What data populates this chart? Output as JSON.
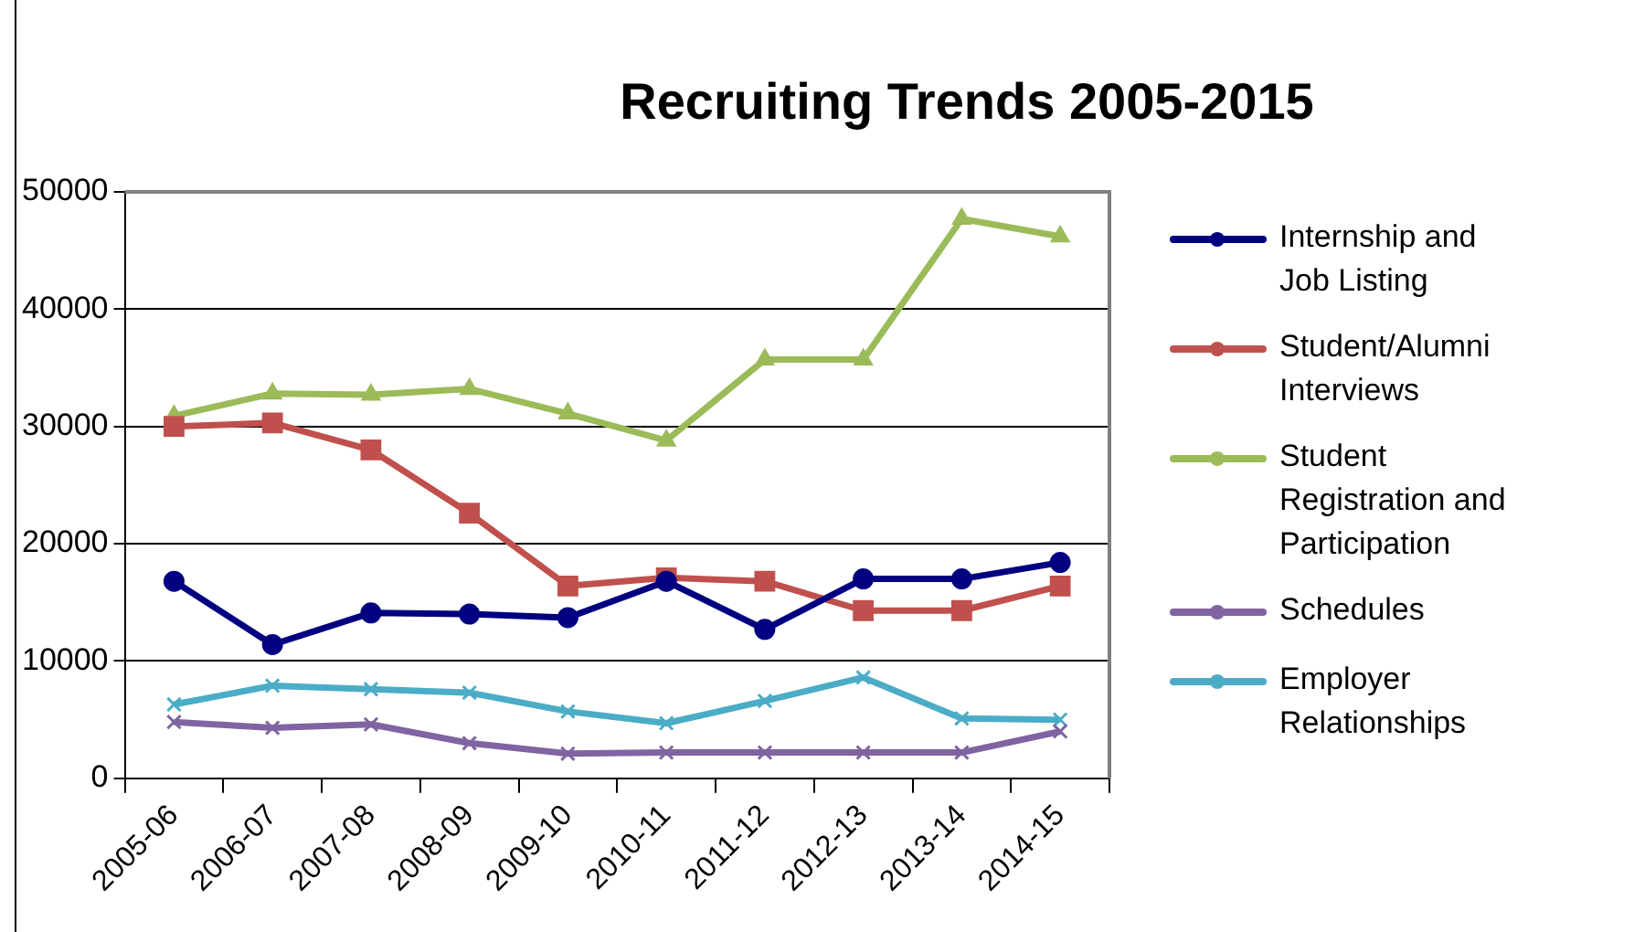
{
  "chart_data": {
    "type": "line",
    "title": "Recruiting Trends 2005-2015",
    "categories": [
      "2005-06",
      "2006-07",
      "2007-08",
      "2008-09",
      "2009-10",
      "2010-11",
      "2011-12",
      "2012-13",
      "2013-14",
      "2014-15"
    ],
    "series": [
      {
        "name": "Internship and Job Listing",
        "color": "#000080",
        "marker": "circle",
        "values": [
          16800,
          11400,
          14100,
          14000,
          13700,
          16800,
          12700,
          17000,
          17000,
          18400
        ]
      },
      {
        "name": "Student/Alumni Interviews",
        "color": "#c0504d",
        "marker": "square",
        "values": [
          30000,
          30300,
          28000,
          22600,
          16400,
          17100,
          16800,
          14300,
          14300,
          16400
        ]
      },
      {
        "name": "Student Registration and Participation",
        "color": "#9bbb59",
        "marker": "triangle",
        "values": [
          30900,
          32800,
          32700,
          33200,
          31100,
          28800,
          35700,
          35700,
          47700,
          46200
        ]
      },
      {
        "name": "Schedules",
        "color": "#8064a2",
        "marker": "cross",
        "values": [
          4800,
          4300,
          4600,
          3000,
          2100,
          2200,
          2200,
          2200,
          2200,
          4000
        ]
      },
      {
        "name": "Employer Relationships",
        "color": "#4bacc6",
        "marker": "cross",
        "values": [
          6300,
          7900,
          7600,
          7300,
          5700,
          4700,
          6600,
          8600,
          5100,
          5000
        ]
      }
    ],
    "ylim": [
      0,
      50000
    ],
    "yticks": [
      0,
      10000,
      20000,
      30000,
      40000,
      50000
    ],
    "grid": "y",
    "legend": "right"
  }
}
